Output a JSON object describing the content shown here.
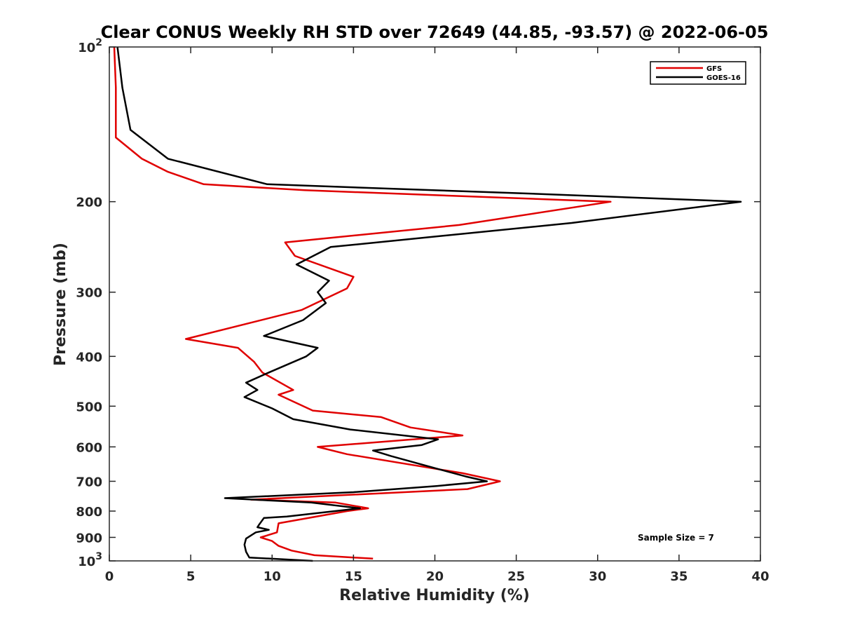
{
  "chart_data": {
    "type": "line",
    "title": "Clear CONUS Weekly RH STD over 72649 (44.85, -93.57) @ 2022-06-05",
    "xlabel": "Relative Humidity (%)",
    "ylabel": "Pressure (mb)",
    "xlim": [
      0,
      40
    ],
    "ylim": [
      100,
      1000
    ],
    "y_scale": "log",
    "y_reversed": true,
    "grid": false,
    "legend_position": "top-right",
    "x_ticks": [
      0,
      5,
      10,
      15,
      20,
      25,
      30,
      35,
      40
    ],
    "x_tick_labels": [
      "0",
      "5",
      "10",
      "15",
      "20",
      "25",
      "30",
      "35",
      "40"
    ],
    "y_ticks": [
      100,
      200,
      300,
      400,
      500,
      600,
      700,
      800,
      900,
      1000
    ],
    "y_tick_labels": [
      {
        "base": "10",
        "exp": "2"
      },
      {
        "base": "200",
        "exp": ""
      },
      {
        "base": "300",
        "exp": ""
      },
      {
        "base": "400",
        "exp": ""
      },
      {
        "base": "500",
        "exp": ""
      },
      {
        "base": "600",
        "exp": ""
      },
      {
        "base": "700",
        "exp": ""
      },
      {
        "base": "800",
        "exp": ""
      },
      {
        "base": "900",
        "exp": ""
      },
      {
        "base": "10",
        "exp": "3"
      }
    ],
    "series": [
      {
        "name": "GFS",
        "color": "#e00000",
        "x": [
          0.3,
          0.4,
          0.4,
          2.0,
          3.6,
          5.8,
          12.0,
          30.8,
          21.5,
          10.8,
          11.4,
          15.0,
          14.6,
          11.8,
          4.7,
          7.9,
          8.9,
          9.4,
          11.3,
          10.4,
          12.5,
          16.7,
          18.5,
          21.7,
          12.8,
          14.6,
          21.7,
          24.0,
          22.0,
          8.7,
          13.9,
          15.9,
          14.6,
          10.4,
          10.3,
          9.3,
          10.0,
          10.4,
          11.2,
          12.6,
          16.2
        ],
        "y": [
          100,
          120,
          150,
          165,
          175,
          185,
          190,
          200,
          222,
          240,
          255,
          280,
          295,
          325,
          370,
          385,
          410,
          430,
          465,
          475,
          510,
          525,
          550,
          570,
          600,
          620,
          675,
          700,
          725,
          760,
          770,
          790,
          800,
          845,
          880,
          900,
          915,
          935,
          955,
          975,
          990
        ]
      },
      {
        "name": "GOES-16",
        "color": "#000000",
        "x": [
          0.5,
          0.8,
          1.3,
          3.6,
          9.7,
          26.0,
          38.8,
          28.4,
          13.6,
          11.5,
          13.5,
          12.8,
          13.3,
          11.9,
          9.5,
          12.8,
          12.1,
          9.8,
          8.4,
          9.1,
          8.3,
          10.0,
          11.3,
          14.8,
          20.2,
          19.2,
          16.2,
          17.3,
          20.0,
          21.9,
          23.2,
          20.1,
          15.0,
          7.1,
          12.4,
          15.4,
          10.9,
          9.5,
          9.2,
          9.1,
          9.8,
          9.0,
          8.4,
          8.3,
          8.4,
          8.6,
          12.5
        ],
        "y": [
          100,
          120,
          145,
          165,
          185,
          193,
          200,
          220,
          245,
          265,
          285,
          300,
          315,
          340,
          365,
          385,
          400,
          430,
          450,
          465,
          480,
          505,
          530,
          555,
          580,
          595,
          610,
          625,
          660,
          685,
          700,
          715,
          735,
          755,
          770,
          790,
          820,
          825,
          850,
          860,
          870,
          880,
          905,
          930,
          960,
          985,
          1000
        ]
      }
    ],
    "annotations": [
      {
        "text": "Sample Size = 7"
      }
    ]
  }
}
